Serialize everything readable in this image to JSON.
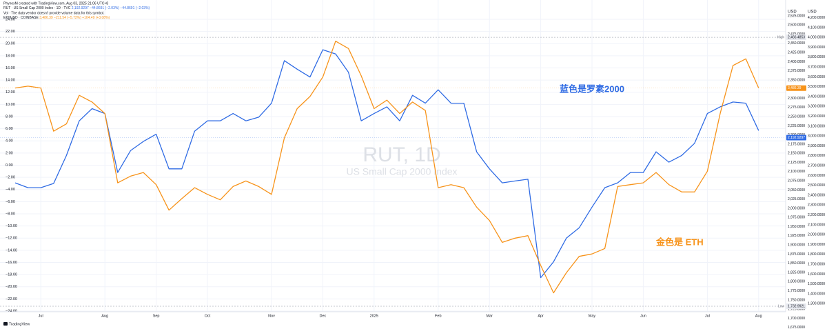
{
  "header": "PhynexM created with TradingView.com, Aug 03, 2025 21:06 UTC+8",
  "footer": "TradingView",
  "chart_data": {
    "type": "line",
    "watermark_title": "RUT, 1D",
    "watermark_subtitle": "US Small Cap 2000 Index",
    "volume_note": "Vol · The data vendor doesn't provide volume data for this symbol.",
    "grid": true,
    "categories": [
      null,
      null,
      "Jul",
      null,
      null,
      null,
      null,
      "Aug",
      null,
      null,
      null,
      "Sep",
      null,
      null,
      null,
      "Oct",
      null,
      null,
      null,
      null,
      "Nov",
      null,
      null,
      null,
      "Dec",
      null,
      null,
      null,
      "2025",
      null,
      null,
      null,
      null,
      "Feb",
      null,
      null,
      null,
      "Mar",
      null,
      null,
      null,
      "Apr",
      null,
      null,
      null,
      "May",
      null,
      null,
      null,
      "Jun",
      null,
      null,
      null,
      null,
      "Jul",
      null,
      null,
      null,
      "Aug"
    ],
    "series": [
      {
        "name": "RUT · US Small Cap 2000 Index · 1D · TVC",
        "color": "#2f6be4",
        "last": {
          "value": 2192.9297,
          "label": "2,192.9297",
          "axis": "y2"
        },
        "change_labels": [
          "−44.8691 (−2.03%)",
          "−44.8691 (−2.03%)"
        ],
        "values": [
          -2.9,
          -3.7,
          -3.7,
          -3.0,
          1.6,
          7.3,
          9.3,
          8.5,
          -1.2,
          2.4,
          3.9,
          5.1,
          -0.6,
          -0.6,
          5.6,
          7.3,
          7.3,
          8.5,
          7.3,
          7.9,
          10.2,
          17.2,
          15.8,
          14.5,
          19.0,
          18.3,
          15.3,
          7.3,
          8.5,
          9.6,
          7.3,
          11.5,
          10.2,
          12.4,
          10.2,
          10.2,
          2.2,
          -0.6,
          -2.9,
          -2.6,
          -2.3,
          -18.5,
          -15.9,
          -12.0,
          -10.3,
          -6.9,
          -3.7,
          -2.9,
          -1.2,
          -1.2,
          2.2,
          0.5,
          1.6,
          3.6,
          8.5,
          9.6,
          10.4,
          10.2,
          5.7
        ]
      },
      {
        "name": "ETHUSD · COINBASE",
        "color": "#f7931a",
        "last": {
          "value": 3486.39,
          "label": "3,486.39",
          "axis": "y3"
        },
        "change_labels": [
          "−211.54 (−5.72%)",
          "+104.49 (+3.08%)"
        ],
        "values": [
          12.7,
          13.0,
          12.7,
          5.6,
          6.8,
          11.5,
          10.4,
          8.5,
          -2.9,
          -1.8,
          -1.2,
          -3.2,
          -7.4,
          -5.5,
          -3.7,
          -4.8,
          -5.7,
          -3.5,
          -2.6,
          -3.5,
          -4.8,
          4.5,
          9.3,
          11.3,
          14.5,
          20.4,
          19.2,
          14.7,
          9.3,
          10.7,
          8.5,
          10.4,
          9.0,
          -3.7,
          -3.2,
          -3.7,
          -6.9,
          -9.1,
          -12.7,
          -12.0,
          -11.6,
          -16.5,
          -21.0,
          -17.7,
          -15.0,
          -14.6,
          -13.7,
          -3.5,
          -3.2,
          -2.9,
          -1.2,
          -3.2,
          -4.4,
          -4.4,
          -1.0,
          8.5,
          16.4,
          17.5,
          12.7
        ]
      }
    ],
    "ylim": [
      -26.72,
      24.68
    ],
    "yticks": [
      {
        "value": 24,
        "label": "24.00"
      },
      {
        "value": 22,
        "label": "22.00"
      },
      {
        "value": 20,
        "label": "20.00"
      },
      {
        "value": 18,
        "label": "18.00"
      },
      {
        "value": 16,
        "label": "16.00"
      },
      {
        "value": 14,
        "label": "14.00"
      },
      {
        "value": 12,
        "label": "12.00"
      },
      {
        "value": 10,
        "label": "10.00"
      },
      {
        "value": 8,
        "label": "8.00"
      },
      {
        "value": 6,
        "label": "6.00"
      },
      {
        "value": 4,
        "label": "4.00"
      },
      {
        "value": 2,
        "label": "2.00"
      },
      {
        "value": 0,
        "label": "0.00"
      },
      {
        "value": -2,
        "label": "−2.00"
      },
      {
        "value": -4,
        "label": "−4.00"
      },
      {
        "value": -6,
        "label": "−6.00"
      },
      {
        "value": -8,
        "label": "−8.00"
      },
      {
        "value": -10,
        "label": "−10.00"
      },
      {
        "value": -12,
        "label": "−12.00"
      },
      {
        "value": -14,
        "label": "−14.00"
      },
      {
        "value": -16,
        "label": "−16.00"
      },
      {
        "value": -18,
        "label": "−18.00"
      },
      {
        "value": -20,
        "label": "−20.00"
      },
      {
        "value": -22,
        "label": "−22.00"
      },
      {
        "value": -24,
        "label": "−24.00"
      }
    ],
    "y2_unit": "USD",
    "y2lim": [
      1674.6,
      2526.9
    ],
    "y2ticks": [
      {
        "value": 2525,
        "label": "2,525.0000"
      },
      {
        "value": 2500,
        "label": "2,500.0000"
      },
      {
        "value": 2475,
        "label": "2,475.0000"
      },
      {
        "value": 2450,
        "label": "2,450.0000"
      },
      {
        "value": 2425,
        "label": "2,425.0000"
      },
      {
        "value": 2400,
        "label": "2,400.0000"
      },
      {
        "value": 2375,
        "label": "2,375.0000"
      },
      {
        "value": 2350,
        "label": "2,350.0000"
      },
      {
        "value": 2325,
        "label": "2,325.0000"
      },
      {
        "value": 2300,
        "label": "2,300.0000"
      },
      {
        "value": 2275,
        "label": "2,275.0000"
      },
      {
        "value": 2250,
        "label": "2,250.0000"
      },
      {
        "value": 2225,
        "label": "2,225.0000"
      },
      {
        "value": 2200,
        "label": "2,200.0000"
      },
      {
        "value": 2175,
        "label": "2,175.0000"
      },
      {
        "value": 2150,
        "label": "2,150.0000"
      },
      {
        "value": 2125,
        "label": "2,125.0000"
      },
      {
        "value": 2100,
        "label": "2,100.0000"
      },
      {
        "value": 2075,
        "label": "2,075.0000"
      },
      {
        "value": 2050,
        "label": "2,050.0000"
      },
      {
        "value": 2025,
        "label": "2,025.0000"
      },
      {
        "value": 2000,
        "label": "2,000.0000"
      },
      {
        "value": 1975,
        "label": "1,975.0000"
      },
      {
        "value": 1950,
        "label": "1,950.0000"
      },
      {
        "value": 1925,
        "label": "1,925.0000"
      },
      {
        "value": 1900,
        "label": "1,900.0000"
      },
      {
        "value": 1875,
        "label": "1,875.0000"
      },
      {
        "value": 1850,
        "label": "1,850.0000"
      },
      {
        "value": 1825,
        "label": "1,825.0000"
      },
      {
        "value": 1800,
        "label": "1,800.0000"
      },
      {
        "value": 1775,
        "label": "1,775.0000"
      },
      {
        "value": 1750,
        "label": "1,750.0000"
      },
      {
        "value": 1725,
        "label": "1,725.0000"
      },
      {
        "value": 1700,
        "label": "1,700.0000"
      },
      {
        "value": 1675,
        "label": "1,675.0000"
      }
    ],
    "y3_unit": "USD",
    "y3lim": [
      1058,
      4226
    ],
    "y3ticks": [
      {
        "value": 4200,
        "label": "4,200.0000"
      },
      {
        "value": 4100,
        "label": "4,100.0000"
      },
      {
        "value": 4000,
        "label": "4,000.0000"
      },
      {
        "value": 3900,
        "label": "3,900.0000"
      },
      {
        "value": 3800,
        "label": "3,800.0000"
      },
      {
        "value": 3700,
        "label": "3,700.0000"
      },
      {
        "value": 3600,
        "label": "3,600.0000"
      },
      {
        "value": 3500,
        "label": "3,500.0000"
      },
      {
        "value": 3400,
        "label": "3,400.0000"
      },
      {
        "value": 3300,
        "label": "3,300.0000"
      },
      {
        "value": 3200,
        "label": "3,200.0000"
      },
      {
        "value": 3100,
        "label": "3,100.0000"
      },
      {
        "value": 3000,
        "label": "3,000.0000"
      },
      {
        "value": 2900,
        "label": "2,900.0000"
      },
      {
        "value": 2800,
        "label": "2,800.0000"
      },
      {
        "value": 2700,
        "label": "2,700.0000"
      },
      {
        "value": 2600,
        "label": "2,600.0000"
      },
      {
        "value": 2500,
        "label": "2,500.0000"
      },
      {
        "value": 2400,
        "label": "2,400.0000"
      },
      {
        "value": 2300,
        "label": "2,300.0000"
      },
      {
        "value": 2200,
        "label": "2,200.0000"
      },
      {
        "value": 2100,
        "label": "2,100.0000"
      },
      {
        "value": 2000,
        "label": "2,000.0000"
      },
      {
        "value": 1900,
        "label": "1,900.0000"
      },
      {
        "value": 1800,
        "label": "1,800.0000"
      },
      {
        "value": 1700,
        "label": "1,700.0000"
      },
      {
        "value": 1600,
        "label": "1,600.0000"
      },
      {
        "value": 1500,
        "label": "1,500.0000"
      },
      {
        "value": 1400,
        "label": "1,400.0000"
      },
      {
        "value": 1300,
        "label": "1,300.0000"
      }
    ],
    "levels": [
      {
        "name": "High",
        "value": 2466.4853,
        "label": "2,466.4853",
        "axis": "y2"
      },
      {
        "name": "Low",
        "value": 1732.9921,
        "label": "1,732.9921",
        "axis": "y2"
      }
    ],
    "annotations": [
      {
        "text": "蓝色是罗素2000",
        "color": "#2f6be4"
      },
      {
        "text": "金色是 ETH",
        "color": "#f7931a"
      }
    ]
  }
}
